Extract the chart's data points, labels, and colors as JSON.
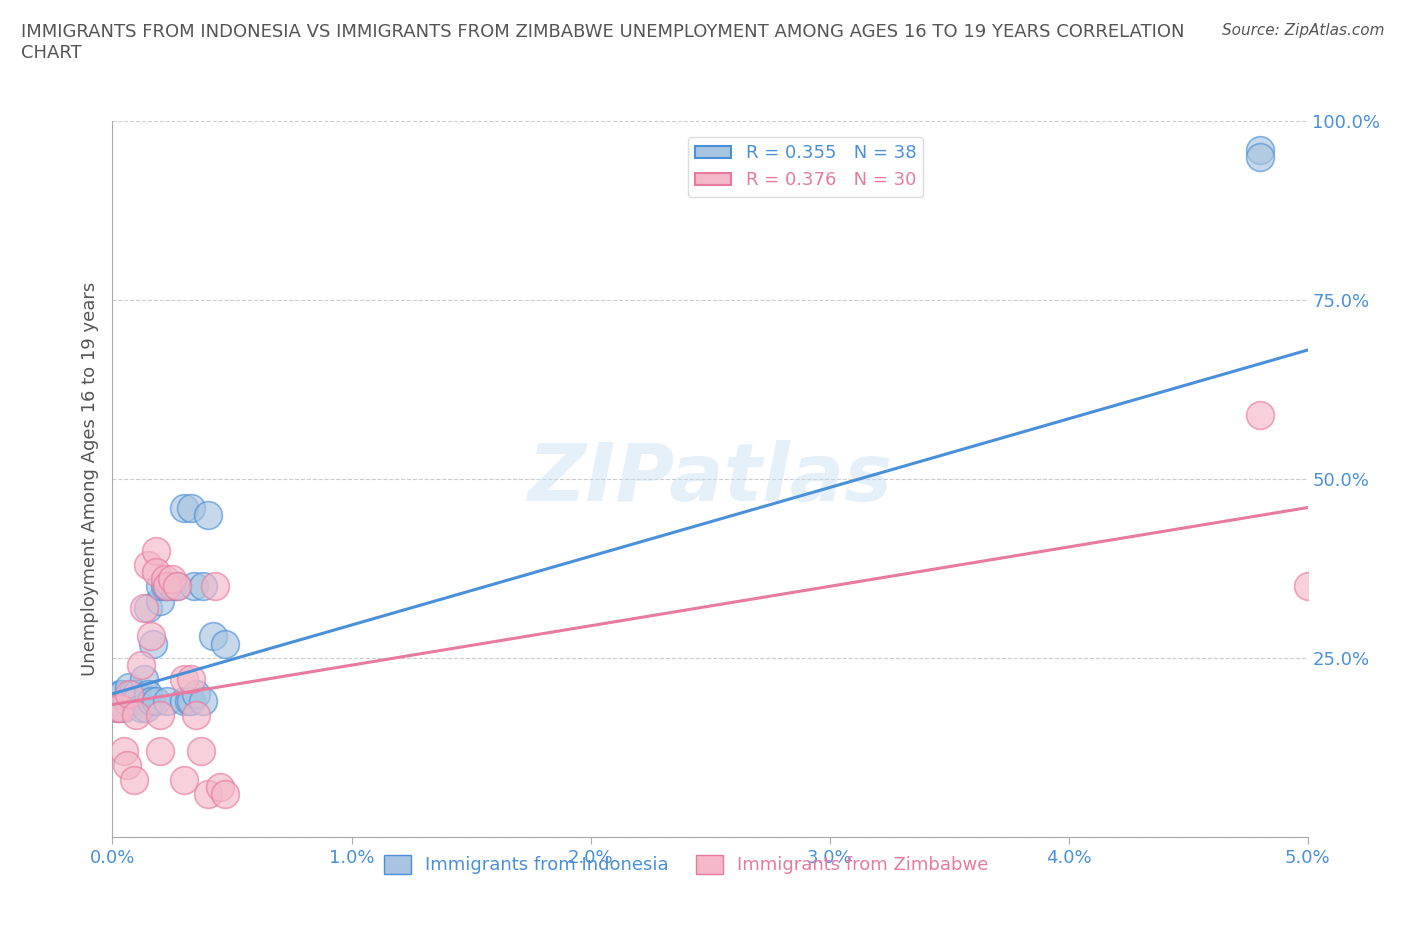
{
  "title": "IMMIGRANTS FROM INDONESIA VS IMMIGRANTS FROM ZIMBABWE UNEMPLOYMENT AMONG AGES 16 TO 19 YEARS CORRELATION\nCHART",
  "source": "Source: ZipAtlas.com",
  "ylabel": "Unemployment Among Ages 16 to 19 years",
  "xlim": [
    0.0,
    0.05
  ],
  "ylim": [
    0.0,
    1.0
  ],
  "xticks": [
    0.0,
    0.01,
    0.02,
    0.03,
    0.04,
    0.05
  ],
  "xtick_labels": [
    "0.0%",
    "1.0%",
    "2.0%",
    "3.0%",
    "4.0%",
    "5.0%"
  ],
  "yticks": [
    0.0,
    0.25,
    0.5,
    0.75,
    1.0
  ],
  "ytick_labels": [
    "",
    "25.0%",
    "50.0%",
    "75.0%",
    "100.0%"
  ],
  "indonesia_color": "#a8c4e0",
  "zimbabwe_color": "#f4b8c8",
  "indonesia_line_color": "#4a90d9",
  "zimbabwe_line_color": "#e87aa0",
  "R_indonesia": 0.355,
  "N_indonesia": 38,
  "R_zimbabwe": 0.376,
  "N_zimbabwe": 30,
  "indonesia_line_x0": 0.0,
  "indonesia_line_y0": 0.2,
  "indonesia_line_x1": 0.05,
  "indonesia_line_y1": 0.68,
  "zimbabwe_line_x0": 0.0,
  "zimbabwe_line_y0": 0.185,
  "zimbabwe_line_x1": 0.05,
  "zimbabwe_line_y1": 0.46,
  "indonesia_x": [
    0.0002,
    0.0003,
    0.0004,
    0.0005,
    0.0006,
    0.0007,
    0.0008,
    0.001,
    0.001,
    0.0012,
    0.0013,
    0.0014,
    0.0015,
    0.0015,
    0.0016,
    0.0017,
    0.0018,
    0.002,
    0.002,
    0.0022,
    0.0023,
    0.0023,
    0.0025,
    0.0027,
    0.003,
    0.003,
    0.0032,
    0.0033,
    0.0033,
    0.0034,
    0.0035,
    0.0038,
    0.0038,
    0.004,
    0.0042,
    0.0047,
    0.048,
    0.048
  ],
  "indonesia_y": [
    0.18,
    0.2,
    0.2,
    0.18,
    0.19,
    0.21,
    0.2,
    0.2,
    0.19,
    0.18,
    0.22,
    0.18,
    0.2,
    0.32,
    0.19,
    0.27,
    0.19,
    0.33,
    0.35,
    0.35,
    0.35,
    0.19,
    0.35,
    0.35,
    0.46,
    0.19,
    0.19,
    0.19,
    0.46,
    0.35,
    0.2,
    0.35,
    0.19,
    0.45,
    0.28,
    0.27,
    0.96,
    0.95
  ],
  "zimbabwe_x": [
    0.0002,
    0.0003,
    0.0005,
    0.0006,
    0.0007,
    0.0009,
    0.001,
    0.0012,
    0.0013,
    0.0015,
    0.0016,
    0.0018,
    0.0018,
    0.002,
    0.002,
    0.0022,
    0.0023,
    0.0025,
    0.0027,
    0.003,
    0.003,
    0.0033,
    0.0035,
    0.0037,
    0.004,
    0.0043,
    0.0045,
    0.0047,
    0.048,
    0.05
  ],
  "zimbabwe_y": [
    0.18,
    0.18,
    0.12,
    0.1,
    0.2,
    0.08,
    0.17,
    0.24,
    0.32,
    0.38,
    0.28,
    0.4,
    0.37,
    0.12,
    0.17,
    0.36,
    0.35,
    0.36,
    0.35,
    0.22,
    0.08,
    0.22,
    0.17,
    0.12,
    0.06,
    0.35,
    0.07,
    0.06,
    0.59,
    0.35
  ],
  "grid_color": "#cccccc",
  "background_color": "#ffffff",
  "title_color": "#555555",
  "tick_color": "#4a90d9"
}
